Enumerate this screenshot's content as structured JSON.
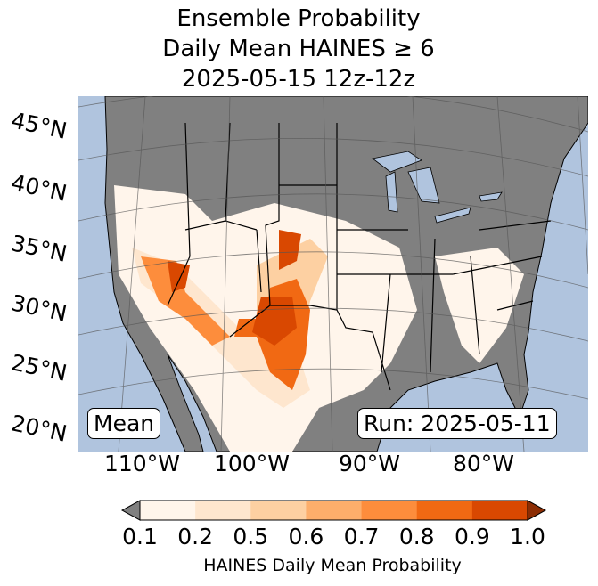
{
  "title": {
    "line1": "Ensemble Probability",
    "line2": "Daily Mean HAINES ≥ 6",
    "line3": "2025-05-15 12z-12z"
  },
  "lat_labels": [
    "45°N",
    "40°N",
    "35°N",
    "30°N",
    "25°N",
    "20°N"
  ],
  "lon_labels": [
    "110°W",
    "100°W",
    "90°W",
    "80°W"
  ],
  "mean_box": "Mean",
  "run_box": "Run: 2025-05-11",
  "colorbar": {
    "ticks": [
      "0.1",
      "0.2",
      "0.5",
      "0.6",
      "0.7",
      "0.8",
      "0.9",
      "1.0"
    ],
    "label": "HAINES Daily Mean Probability",
    "under_color": "#808080",
    "over_color": "#8c2d04",
    "colors": [
      "#fff5eb",
      "#fee6ce",
      "#fdd0a2",
      "#fdae6b",
      "#fd8d3c",
      "#f16913",
      "#d94801"
    ]
  },
  "colors": {
    "ocean": "#b0c4de",
    "land": "#808080"
  }
}
